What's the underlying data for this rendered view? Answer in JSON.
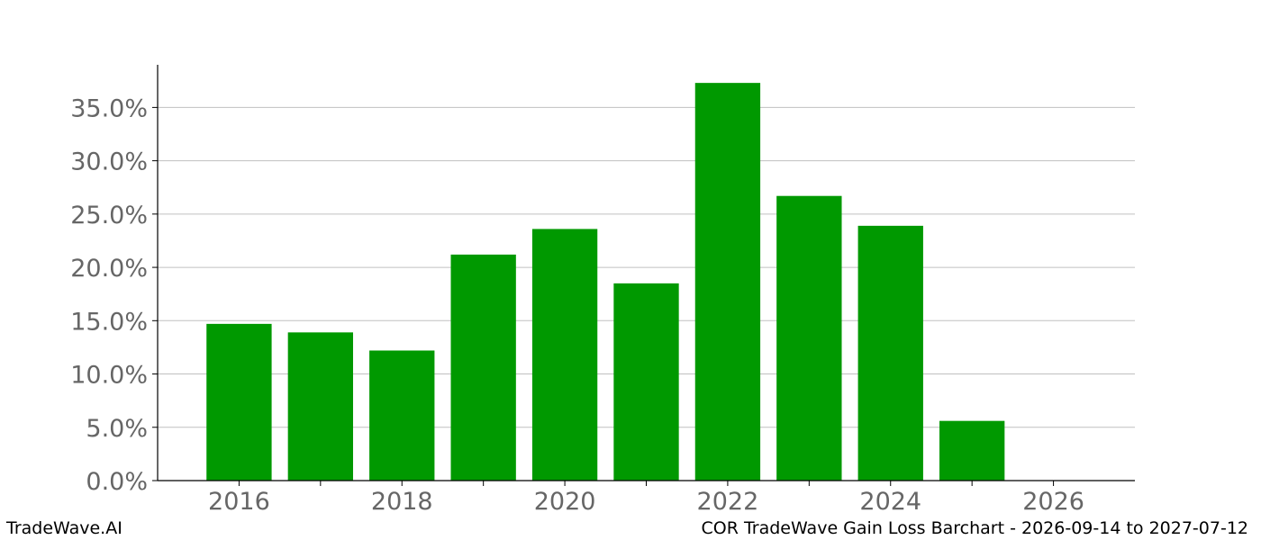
{
  "footer": {
    "brand": "TradeWave.AI",
    "caption": "COR TradeWave Gain Loss Barchart - 2026-09-14 to 2027-07-12"
  },
  "chart_data": {
    "type": "bar",
    "title": "",
    "xlabel": "",
    "ylabel": "",
    "categories": [
      "2016",
      "2017",
      "2018",
      "2019",
      "2020",
      "2021",
      "2022",
      "2023",
      "2024",
      "2025"
    ],
    "values": [
      14.7,
      13.9,
      12.2,
      21.2,
      23.6,
      18.5,
      37.3,
      26.7,
      23.9,
      5.6
    ],
    "xlim": [
      2015,
      2027
    ],
    "ylim": [
      0,
      39.0
    ],
    "x_ticks": [
      "2016",
      "2018",
      "2020",
      "2022",
      "2024",
      "2026"
    ],
    "y_ticks": [
      "0.0%",
      "5.0%",
      "10.0%",
      "15.0%",
      "20.0%",
      "25.0%",
      "30.0%",
      "35.0%"
    ],
    "y_tick_values": [
      0,
      5,
      10,
      15,
      20,
      25,
      30,
      35
    ],
    "bar_color": "#009900",
    "grid": "horizontal",
    "legend": "none"
  }
}
